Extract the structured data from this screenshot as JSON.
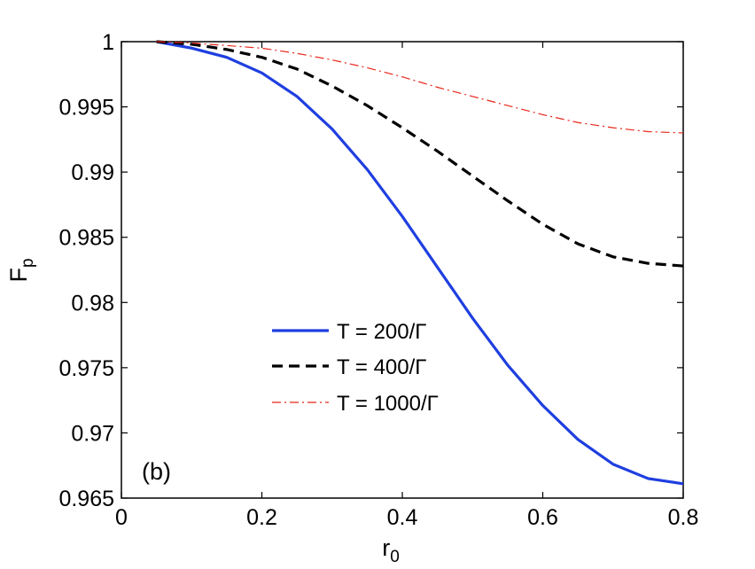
{
  "chart_data": {
    "type": "line",
    "xlabel": {
      "main": "r",
      "sub": "0"
    },
    "ylabel": {
      "main": "F",
      "sub": "p"
    },
    "xlim": [
      0,
      0.8
    ],
    "ylim": [
      0.965,
      1.0
    ],
    "x_ticks": [
      0,
      0.2,
      0.4,
      0.6,
      0.8
    ],
    "x_tick_labels": [
      "0",
      "0.2",
      "0.4",
      "0.6",
      "0.8"
    ],
    "y_ticks": [
      0.965,
      0.97,
      0.975,
      0.98,
      0.985,
      0.99,
      0.995,
      1.0
    ],
    "y_tick_labels": [
      "0.965",
      "0.97",
      "0.975",
      "0.98",
      "0.985",
      "0.99",
      "0.995",
      "1"
    ],
    "grid": false,
    "legend_position": "center-left",
    "panel_label": "(b)",
    "series": [
      {
        "name": "T = 200/Γ",
        "color": "#1f3fe0",
        "style": "solid",
        "x": [
          0.05,
          0.1,
          0.15,
          0.2,
          0.25,
          0.3,
          0.35,
          0.4,
          0.45,
          0.5,
          0.55,
          0.6,
          0.65,
          0.7,
          0.75,
          0.8
        ],
        "y": [
          1.0,
          0.9995,
          0.9988,
          0.9976,
          0.9958,
          0.9933,
          0.9902,
          0.9866,
          0.9827,
          0.9788,
          0.9752,
          0.9721,
          0.9695,
          0.9676,
          0.9665,
          0.9661
        ]
      },
      {
        "name": "T = 400/Γ",
        "color": "#000000",
        "style": "dashed",
        "x": [
          0.05,
          0.1,
          0.15,
          0.2,
          0.25,
          0.3,
          0.35,
          0.4,
          0.45,
          0.5,
          0.55,
          0.6,
          0.65,
          0.7,
          0.75,
          0.8
        ],
        "y": [
          1.0,
          0.9998,
          0.9994,
          0.9988,
          0.9979,
          0.9966,
          0.9951,
          0.9934,
          0.9916,
          0.9897,
          0.9878,
          0.986,
          0.9845,
          0.9835,
          0.983,
          0.9828
        ]
      },
      {
        "name": "T = 1000/Γ",
        "color": "#e8261a",
        "style": "dashdot",
        "x": [
          0.05,
          0.1,
          0.15,
          0.2,
          0.25,
          0.3,
          0.35,
          0.4,
          0.45,
          0.5,
          0.55,
          0.6,
          0.65,
          0.7,
          0.75,
          0.8
        ],
        "y": [
          1.0,
          0.9999,
          0.9997,
          0.9995,
          0.9991,
          0.9986,
          0.998,
          0.9973,
          0.9965,
          0.9958,
          0.9951,
          0.9944,
          0.9938,
          0.9934,
          0.9931,
          0.993
        ]
      }
    ]
  }
}
